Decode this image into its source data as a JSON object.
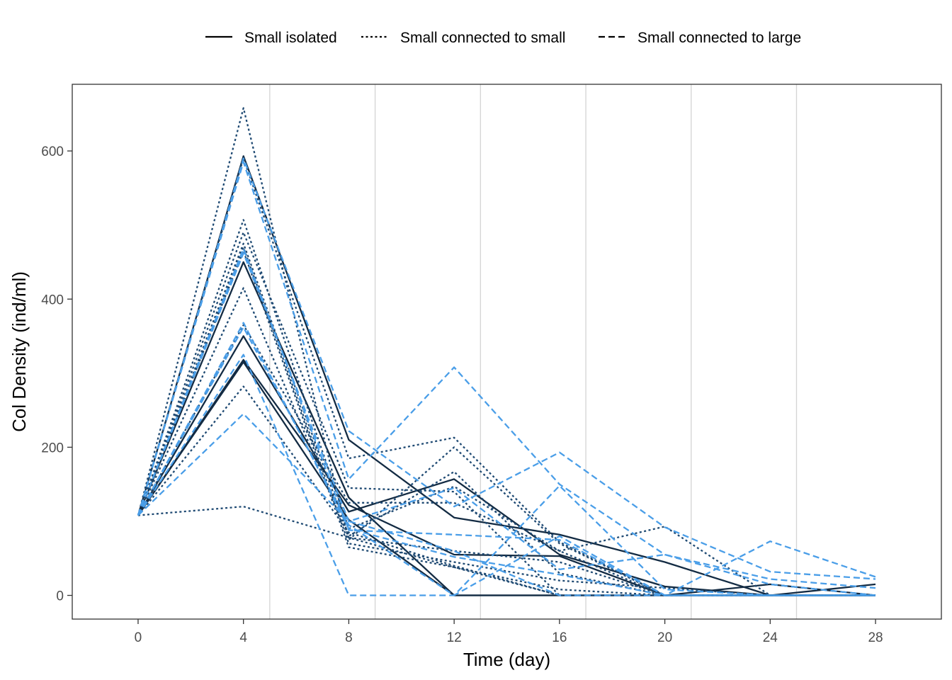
{
  "chart_data": {
    "type": "line",
    "xlabel": "Time (day)",
    "ylabel": "Col Density (ind/ml)",
    "xlim": [
      -2.5,
      30.5
    ],
    "ylim": [
      -32,
      690
    ],
    "x_ticks": [
      0,
      4,
      8,
      12,
      16,
      20,
      24,
      28
    ],
    "y_ticks": [
      0,
      200,
      400,
      600
    ],
    "vertical_gridlines_at": [
      5,
      9,
      13,
      17,
      21,
      25
    ],
    "grid": "vertical lines only",
    "legend_position": "top",
    "legend": [
      {
        "label": "Small isolated",
        "linetype": "solid"
      },
      {
        "label": "Small connected to small",
        "linetype": "dotted"
      },
      {
        "label": "Small connected to large",
        "linetype": "dashed"
      }
    ],
    "colors": {
      "small_isolated": "#132b43",
      "connected_small": "#1f4a73",
      "connected_large": "#4a9ee8",
      "grid": "#d4d4d4"
    },
    "x": [
      0,
      4,
      8,
      12,
      16,
      20,
      24,
      28
    ],
    "series": [
      {
        "group": "Small isolated",
        "values": [
          108,
          593,
          210,
          105,
          82,
          45,
          0,
          0
        ]
      },
      {
        "group": "Small isolated",
        "values": [
          108,
          450,
          132,
          0,
          0,
          0,
          0,
          0
        ]
      },
      {
        "group": "Small isolated",
        "values": [
          108,
          350,
          113,
          157,
          55,
          12,
          0,
          15
        ]
      },
      {
        "group": "Small isolated",
        "values": [
          108,
          318,
          122,
          55,
          53,
          0,
          0,
          0
        ]
      },
      {
        "group": "Small isolated",
        "values": [
          108,
          315,
          102,
          0,
          0,
          0,
          15,
          0
        ]
      },
      {
        "group": "Small connected to small",
        "values": [
          108,
          658,
          75,
          200,
          70,
          0,
          0,
          0
        ]
      },
      {
        "group": "Small connected to small",
        "values": [
          108,
          590,
          185,
          213,
          72,
          0,
          0,
          0
        ]
      },
      {
        "group": "Small connected to small",
        "values": [
          108,
          507,
          90,
          147,
          60,
          0,
          0,
          0
        ]
      },
      {
        "group": "Small connected to small",
        "values": [
          108,
          490,
          145,
          140,
          0,
          0,
          0,
          0
        ]
      },
      {
        "group": "Small connected to small",
        "values": [
          108,
          475,
          80,
          167,
          30,
          0,
          0,
          0
        ]
      },
      {
        "group": "Small connected to small",
        "values": [
          108,
          470,
          70,
          45,
          20,
          10,
          0,
          0
        ]
      },
      {
        "group": "Small connected to small",
        "values": [
          108,
          465,
          65,
          38,
          8,
          0,
          0,
          0
        ]
      },
      {
        "group": "Small connected to small",
        "values": [
          108,
          415,
          78,
          38,
          0,
          0,
          0,
          0
        ]
      },
      {
        "group": "Small connected to small",
        "values": [
          108,
          365,
          125,
          125,
          60,
          93,
          0,
          0
        ]
      },
      {
        "group": "Small connected to small",
        "values": [
          108,
          282,
          85,
          40,
          0,
          0,
          0,
          0
        ]
      },
      {
        "group": "Small connected to small",
        "values": [
          108,
          120,
          78,
          60,
          45,
          0,
          0,
          0
        ]
      },
      {
        "group": "Small connected to large",
        "values": [
          108,
          590,
          222,
          120,
          193,
          92,
          32,
          22
        ]
      },
      {
        "group": "Small connected to large",
        "values": [
          108,
          585,
          157,
          308,
          150,
          55,
          22,
          10
        ]
      },
      {
        "group": "Small connected to large",
        "values": [
          108,
          468,
          88,
          82,
          75,
          0,
          73,
          25
        ]
      },
      {
        "group": "Small connected to large",
        "values": [
          108,
          462,
          100,
          145,
          35,
          55,
          15,
          0
        ]
      },
      {
        "group": "Small connected to large",
        "values": [
          108,
          368,
          90,
          52,
          28,
          0,
          0,
          0
        ]
      },
      {
        "group": "Small connected to large",
        "values": [
          108,
          362,
          95,
          0,
          80,
          0,
          0,
          0
        ]
      },
      {
        "group": "Small connected to large",
        "values": [
          108,
          325,
          0,
          0,
          148,
          8,
          0,
          0
        ]
      },
      {
        "group": "Small connected to large",
        "values": [
          108,
          245,
          100,
          60,
          0,
          0,
          0,
          0
        ]
      }
    ]
  }
}
